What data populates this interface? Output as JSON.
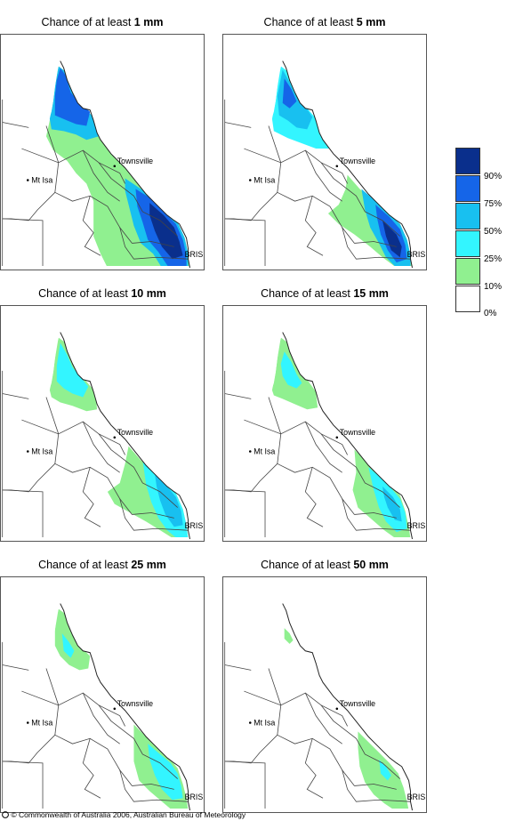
{
  "panels": [
    {
      "prefix": "Chance of at least ",
      "amount": "1 mm"
    },
    {
      "prefix": "Chance of at least ",
      "amount": "5 mm"
    },
    {
      "prefix": "Chance of at least ",
      "amount": "10 mm"
    },
    {
      "prefix": "Chance of at least ",
      "amount": "15 mm"
    },
    {
      "prefix": "Chance of at least ",
      "amount": "25 mm"
    },
    {
      "prefix": "Chance of at least ",
      "amount": "50 mm"
    }
  ],
  "map_labels": {
    "townsville": "Townsville",
    "mt_isa": "Mt Isa",
    "bris": "BRIS"
  },
  "legend": {
    "labels": [
      "90%",
      "75%",
      "50%",
      "25%",
      "10%",
      "0%"
    ],
    "colors": [
      "#0a2f8c",
      "#1565e8",
      "#18c0f0",
      "#33f5ff",
      "#90f090",
      "#ffffff"
    ]
  },
  "footer": "© Commonwealth of Australia 2006, Australian Bureau of Meteorology"
}
